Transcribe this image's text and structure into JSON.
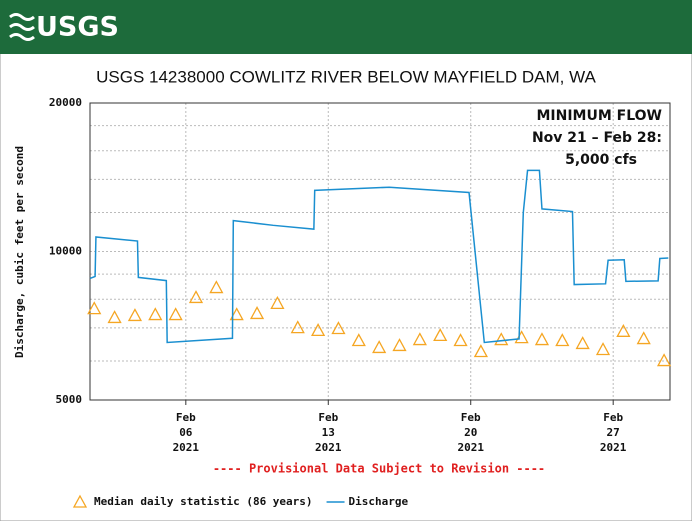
{
  "header": {
    "logo": "USGS"
  },
  "chart_data": {
    "type": "line",
    "title": "USGS 14238000 COWLITZ RIVER BELOW MAYFIELD DAM, WA",
    "y_label": "Discharge, cubic feet per second",
    "annotation": [
      "MINIMUM FLOW",
      "Nov 21 – Feb 28:",
      "5,000 cfs"
    ],
    "note": "---- Provisional Data Subject to Revision ----",
    "log_y": true,
    "ylim": [
      5000,
      20000
    ],
    "yticks": [
      5000,
      10000,
      20000
    ],
    "y_minor_grid": [
      6000,
      7000,
      8000,
      9000,
      12000,
      14000,
      16000,
      18000
    ],
    "xlim": [
      "2021-02-01T07:00",
      "2021-03-01T19:00"
    ],
    "xticks": [
      {
        "value": "2021-02-06T00:00",
        "label": "Feb 06 2021"
      },
      {
        "value": "2021-02-13T00:00",
        "label": "Feb 13 2021"
      },
      {
        "value": "2021-02-20T00:00",
        "label": "Feb 20 2021"
      },
      {
        "value": "2021-02-27T00:00",
        "label": "Feb 27 2021"
      }
    ],
    "series": [
      {
        "name": "Median daily statistic (86 years)",
        "color": "#f5a623",
        "marker": "triangle",
        "x": [
          "2021-02-01T12:00",
          "2021-02-02T12:00",
          "2021-02-03T12:00",
          "2021-02-04T12:00",
          "2021-02-05T12:00",
          "2021-02-06T12:00",
          "2021-02-07T12:00",
          "2021-02-08T12:00",
          "2021-02-09T12:00",
          "2021-02-10T12:00",
          "2021-02-11T12:00",
          "2021-02-12T12:00",
          "2021-02-13T12:00",
          "2021-02-14T12:00",
          "2021-02-15T12:00",
          "2021-02-16T12:00",
          "2021-02-17T12:00",
          "2021-02-18T12:00",
          "2021-02-19T12:00",
          "2021-02-20T12:00",
          "2021-02-21T12:00",
          "2021-02-22T12:00",
          "2021-02-23T12:00",
          "2021-02-24T12:00",
          "2021-02-25T12:00",
          "2021-02-26T12:00",
          "2021-02-27T12:00",
          "2021-02-28T12:00",
          "2021-03-01T12:00"
        ],
        "values": [
          7660,
          7350,
          7420,
          7450,
          7450,
          8070,
          8450,
          7450,
          7490,
          7850,
          7010,
          6920,
          6980,
          6600,
          6390,
          6450,
          6630,
          6760,
          6600,
          6270,
          6630,
          6690,
          6630,
          6600,
          6510,
          6330,
          6890,
          6660,
          6010
        ]
      },
      {
        "name": "Discharge",
        "color": "#1a8fd0",
        "marker": "line",
        "x": [
          "2021-02-01T07:00",
          "2021-02-01T13:00",
          "2021-02-01T14:00",
          "2021-02-03T15:00",
          "2021-02-03T16:00",
          "2021-02-05T01:00",
          "2021-02-05T02:00",
          "2021-02-08T07:00",
          "2021-02-08T08:00",
          "2021-02-10T07:00",
          "2021-02-12T07:00",
          "2021-02-12T08:00",
          "2021-02-16T00:00",
          "2021-02-19T22:00",
          "2021-02-20T16:00",
          "2021-02-22T09:00",
          "2021-02-22T14:00",
          "2021-02-22T19:00",
          "2021-02-23T09:00",
          "2021-02-23T12:00",
          "2021-02-25T00:00",
          "2021-02-25T02:00",
          "2021-02-26T15:00",
          "2021-02-26T18:00",
          "2021-02-27T13:00",
          "2021-02-27T15:00",
          "2021-03-01T05:00",
          "2021-03-01T07:00",
          "2021-03-01T17:00"
        ],
        "values": [
          8820,
          8900,
          10700,
          10500,
          8860,
          8730,
          6540,
          6670,
          11550,
          11300,
          11100,
          13300,
          13500,
          13170,
          6540,
          6650,
          12000,
          14600,
          14600,
          12200,
          12050,
          8570,
          8600,
          9600,
          9620,
          8700,
          8720,
          9680,
          9700
        ]
      }
    ]
  }
}
